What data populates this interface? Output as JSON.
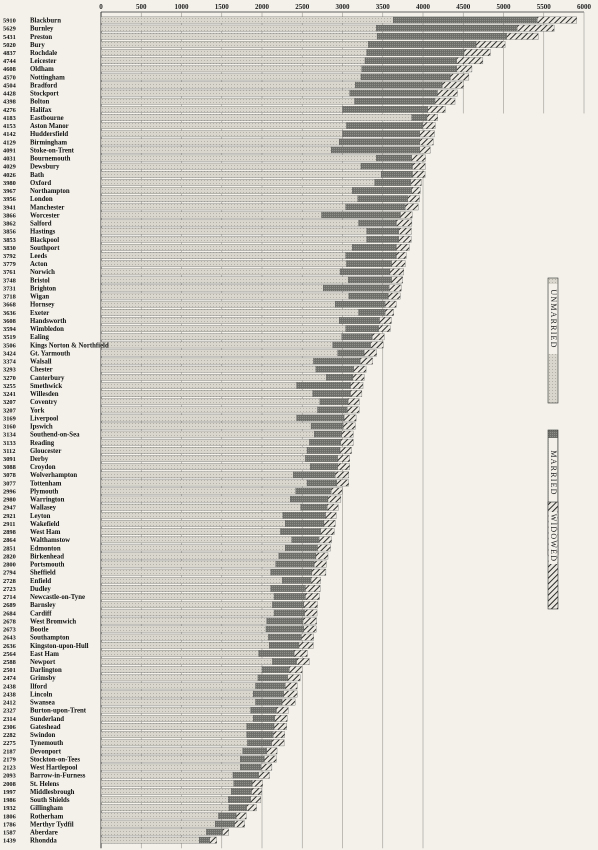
{
  "chart_data": {
    "type": "bar",
    "stacked": true,
    "orientation": "horizontal",
    "title": "",
    "xlabel": "",
    "ylabel": "",
    "xlim": [
      0,
      6000
    ],
    "top_ticks": [
      0,
      500,
      1000,
      1500,
      2000,
      2500,
      3000,
      3500,
      4000,
      4500,
      5000,
      5500,
      6000
    ],
    "bottom_ticks": [
      0,
      500,
      1000,
      1500,
      2000,
      2500,
      3000,
      3500,
      4000
    ],
    "legend": {
      "placement": "right",
      "entries": [
        "UNMARRIED",
        "MARRIED",
        "WIDOWED"
      ]
    },
    "colors": {
      "unmarried": "#dcdad2",
      "married": "#7c7c78",
      "widowed": "#3a3a38",
      "background": "#f3f1ea"
    },
    "totals": [
      5910,
      5629,
      5431,
      5020,
      4837,
      4744,
      4608,
      4570,
      4504,
      4428,
      4398,
      4276,
      4183,
      4153,
      4142,
      4129,
      4091,
      4031,
      4029,
      4026,
      3980,
      3967,
      3956,
      3941,
      3866,
      3862,
      3856,
      3853,
      3830,
      3792,
      3779,
      3761,
      3748,
      3731,
      3718,
      3668,
      3636,
      3608,
      3594,
      3519,
      3506,
      3424,
      3374,
      3293,
      3270,
      3255,
      3241,
      3207,
      3207,
      3169,
      3160,
      3134,
      3133,
      3112,
      3091,
      3088,
      3078,
      3077,
      2996,
      2980,
      2947,
      2921,
      2911,
      2898,
      2864,
      2851,
      2820,
      2800,
      2794,
      2728,
      2723,
      2714,
      2689,
      2684,
      2678,
      2673,
      2643,
      2636,
      2564,
      2588,
      2501,
      2474,
      2438,
      2438,
      2412,
      2327,
      2314,
      2306,
      2282,
      2275,
      2187,
      2179,
      2123,
      2093,
      2008,
      1997,
      1986,
      1932,
      1806,
      1786,
      1587,
      1439
    ],
    "categories": [
      "Blackburn",
      "Burnley",
      "Preston",
      "Bury",
      "Rochdale",
      "Leicester",
      "Oldham",
      "Nottingham",
      "Bradford",
      "Stockport",
      "Bolton",
      "Halifax",
      "Eastbourne",
      "Aston Manor",
      "Huddersfield",
      "Birmingham",
      "Stoke-on-Trent",
      "Bournemouth",
      "Dewsbury",
      "Bath",
      "Oxford",
      "Northampton",
      "London",
      "Manchester",
      "Worcester",
      "Salford",
      "Hastings",
      "Blackpool",
      "Southport",
      "Leeds",
      "Acton",
      "Norwich",
      "Bristol",
      "Brighton",
      "Wigan",
      "Hornsey",
      "Exeter",
      "Handsworth",
      "Wimbledon",
      "Ealing",
      "Kings Norton & Northfield",
      "Gt. Yarmouth",
      "Walsall",
      "Chester",
      "Canterbury",
      "Smethwick",
      "Willesden",
      "Coventry",
      "York",
      "Liverpool",
      "Ipswich",
      "Southend-on-Sea",
      "Reading",
      "Gloucester",
      "Derby",
      "Croydon",
      "Wolverhampton",
      "Tottenham",
      "Plymouth",
      "Warrington",
      "Wallasey",
      "Leyton",
      "Wakefield",
      "West Ham",
      "Walthamstow",
      "Edmonton",
      "Birkenhead",
      "Portsmouth",
      "Sheffield",
      "Enfield",
      "Dudley",
      "Newcastle-on-Tyne",
      "Barnsley",
      "Cardiff",
      "West Bromwich",
      "Bootle",
      "Southampton",
      "Kingston-upon-Hull",
      "East Ham",
      "Newport",
      "Darlington",
      "Grimsby",
      "Ilford",
      "Lincoln",
      "Swansea",
      "Burton-upon-Trent",
      "Sunderland",
      "Gateshead",
      "Swindon",
      "Tynemouth",
      "Devonport",
      "Stockton-on-Tees",
      "West Hartlepool",
      "Barrow-in-Furness",
      "St. Helens",
      "Middlesbrough",
      "South Shields",
      "Gillingham",
      "Rotherham",
      "Merthyr Tydfil",
      "Aberdare",
      "Rhondda"
    ],
    "series": [
      {
        "name": "UNMARRIED",
        "values": [
          3630,
          3420,
          3430,
          3320,
          3300,
          3280,
          3240,
          3230,
          3160,
          3090,
          3150,
          3000,
          3860,
          3050,
          3000,
          2960,
          2860,
          3420,
          3230,
          3480,
          3400,
          3120,
          3190,
          3040,
          2740,
          3200,
          3300,
          3300,
          3120,
          3040,
          3050,
          2970,
          3070,
          2760,
          3080,
          2910,
          3200,
          2960,
          3040,
          2990,
          2880,
          2940,
          2640,
          2670,
          2800,
          2430,
          2630,
          2720,
          2690,
          2430,
          2610,
          2650,
          2590,
          2560,
          2540,
          2600,
          2390,
          2560,
          2420,
          2350,
          2480,
          2260,
          2290,
          2230,
          2370,
          2290,
          2210,
          2170,
          2110,
          2250,
          2110,
          2150,
          2130,
          2150,
          2060,
          2050,
          2080,
          2090,
          1960,
          2130,
          2000,
          1950,
          1920,
          1890,
          1920,
          1860,
          1890,
          1810,
          1810,
          1820,
          1760,
          1730,
          1730,
          1640,
          1650,
          1620,
          1580,
          1590,
          1460,
          1420,
          1310,
          1220
        ]
      },
      {
        "name": "MARRIED",
        "values": [
          1790,
          1750,
          1610,
          1340,
          1210,
          1140,
          1180,
          1110,
          1080,
          1090,
          1000,
          1060,
          190,
          950,
          960,
          1000,
          1100,
          440,
          640,
          390,
          450,
          740,
          620,
          740,
          980,
          470,
          400,
          400,
          550,
          630,
          560,
          620,
          540,
          820,
          490,
          620,
          330,
          500,
          410,
          380,
          470,
          330,
          580,
          470,
          330,
          670,
          470,
          350,
          370,
          590,
          400,
          340,
          390,
          410,
          400,
          340,
          520,
          370,
          440,
          470,
          330,
          530,
          480,
          500,
          340,
          400,
          460,
          480,
          510,
          360,
          430,
          390,
          390,
          380,
          450,
          470,
          410,
          370,
          440,
          300,
          340,
          370,
          370,
          380,
          330,
          320,
          270,
          340,
          330,
          300,
          300,
          300,
          260,
          320,
          230,
          250,
          280,
          220,
          220,
          240,
          200,
          130
        ]
      },
      {
        "name": "WIDOWED",
        "values": [
          490,
          459,
          391,
          360,
          327,
          324,
          188,
          230,
          264,
          248,
          248,
          216,
          133,
          153,
          182,
          169,
          131,
          171,
          159,
          156,
          130,
          107,
          146,
          161,
          146,
          192,
          156,
          153,
          160,
          122,
          169,
          171,
          138,
          151,
          148,
          138,
          106,
          148,
          144,
          149,
          156,
          154,
          154,
          153,
          140,
          155,
          141,
          137,
          147,
          149,
          150,
          144,
          153,
          142,
          151,
          148,
          168,
          147,
          136,
          160,
          137,
          131,
          141,
          168,
          154,
          161,
          150,
          150,
          174,
          118,
          183,
          174,
          169,
          154,
          168,
          153,
          153,
          176,
          164,
          158,
          161,
          154,
          148,
          168,
          162,
          147,
          154,
          156,
          142,
          155,
          127,
          149,
          133,
          133,
          128,
          127,
          126,
          122,
          126,
          126,
          77,
          89
        ]
      }
    ]
  }
}
